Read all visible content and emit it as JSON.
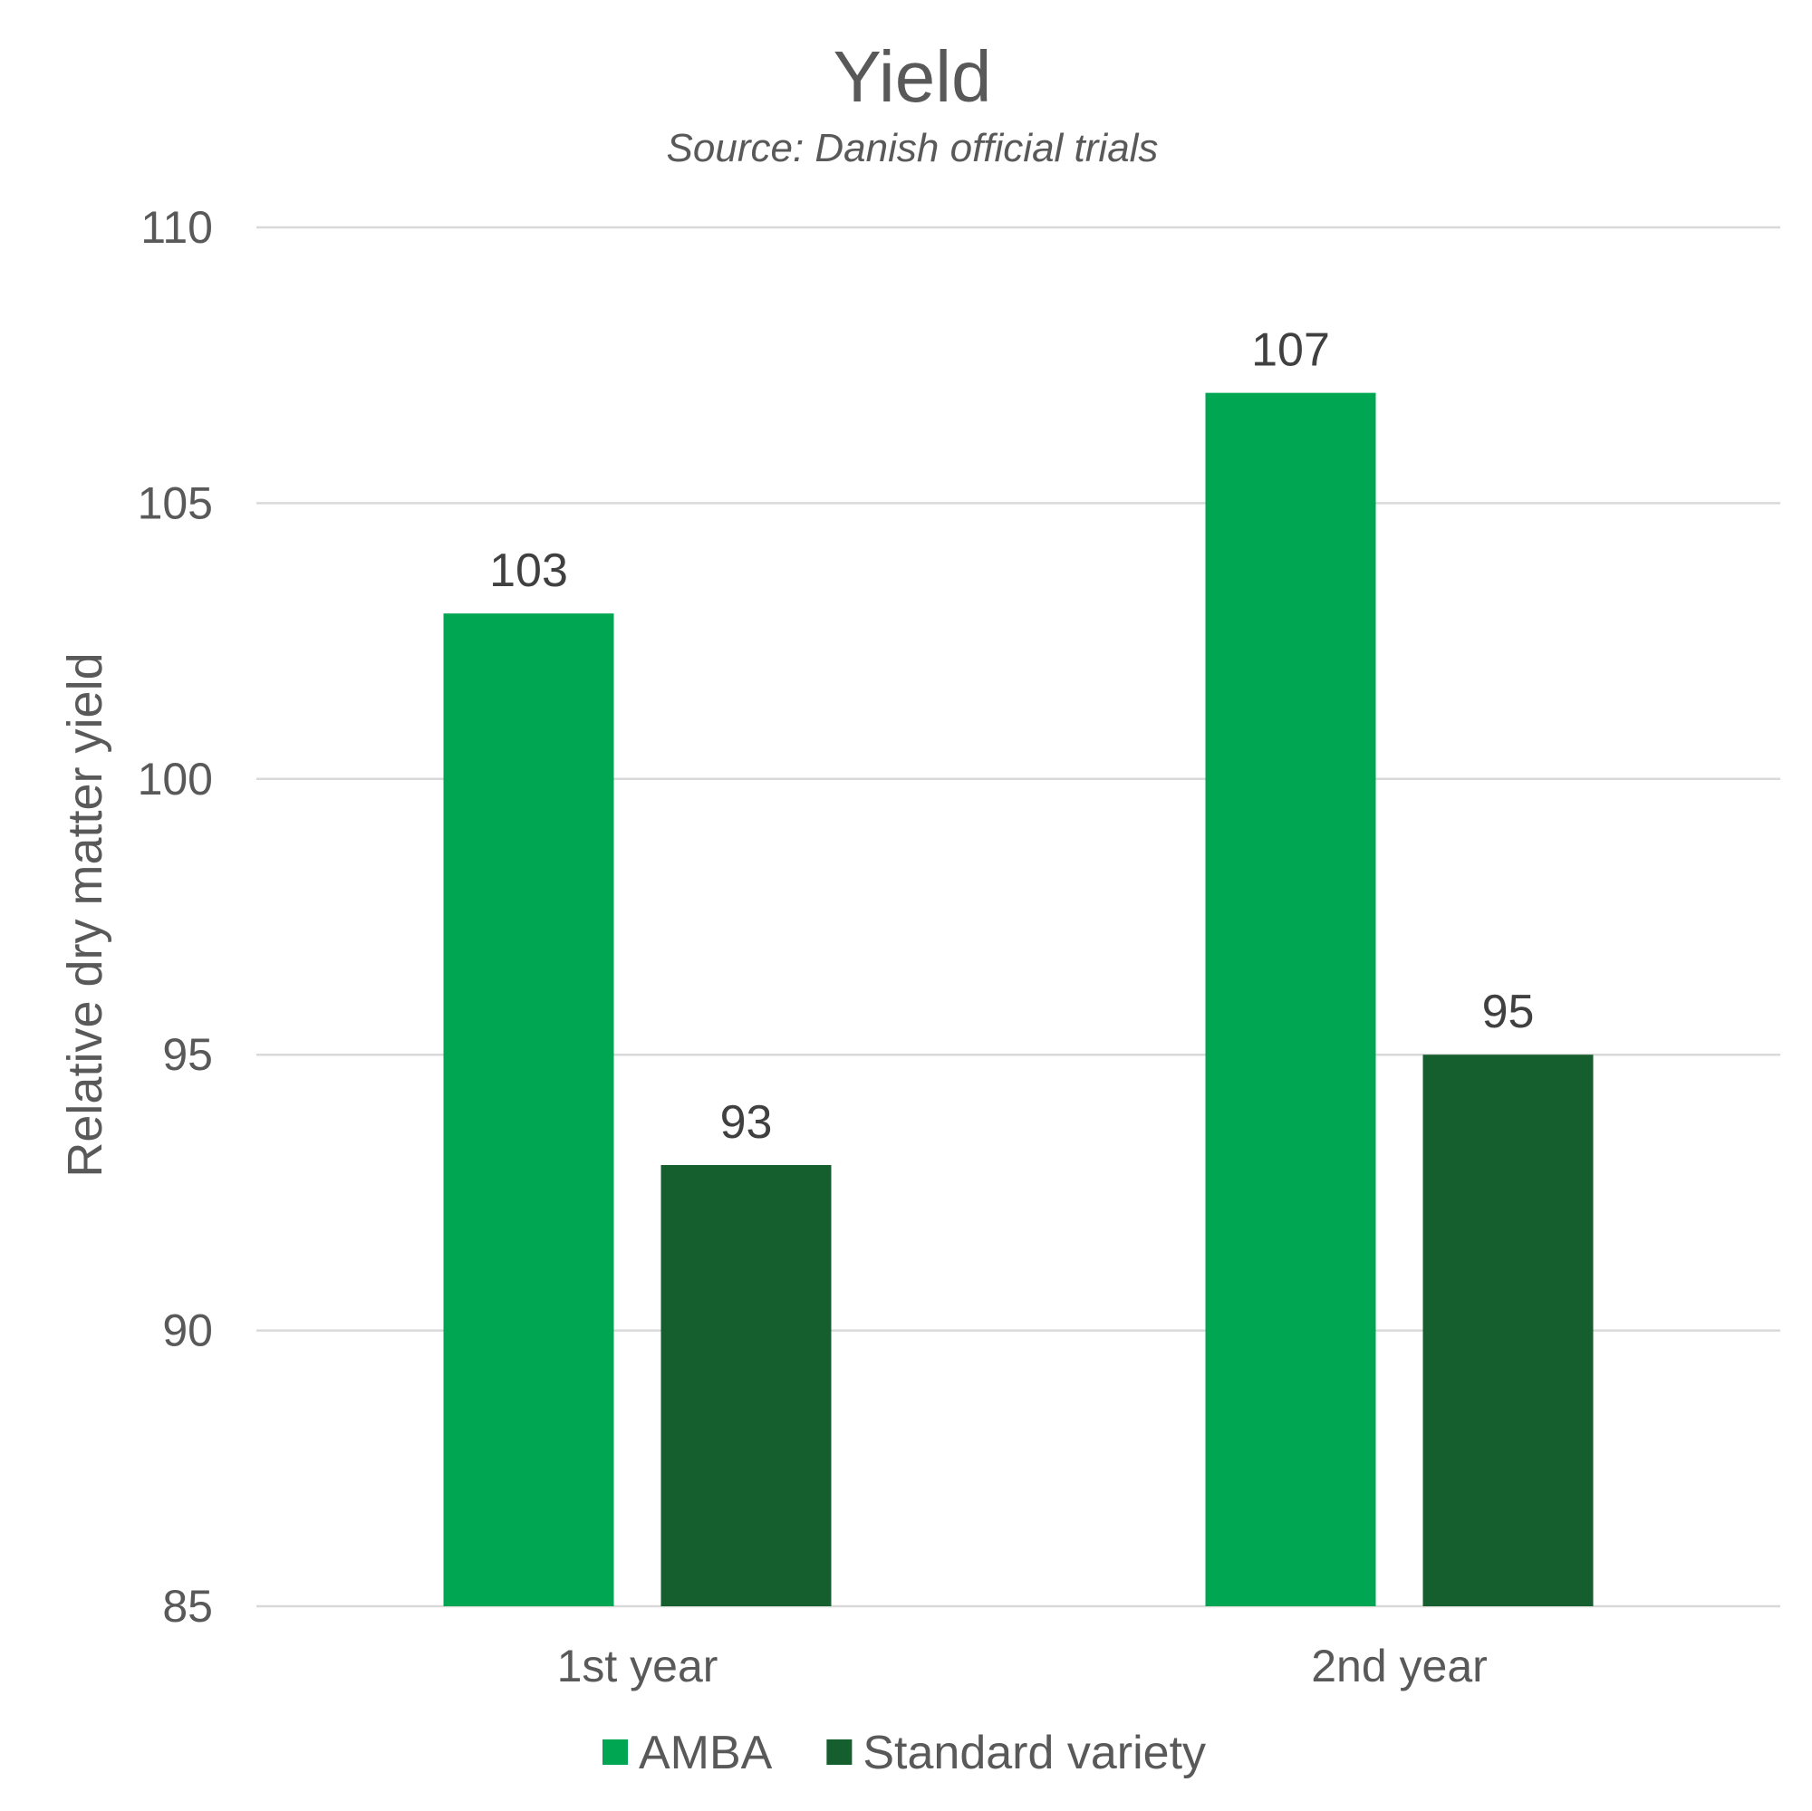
{
  "chart_data": {
    "type": "bar",
    "title": "Yield",
    "subtitle": "Source: Danish official trials",
    "xlabel": "",
    "ylabel": "Relative dry matter yield",
    "categories": [
      "1st year",
      "2nd year"
    ],
    "series": [
      {
        "name": "AMBA",
        "values": [
          103,
          107
        ],
        "color": "#00a651"
      },
      {
        "name": "Standard variety",
        "values": [
          93,
          95
        ],
        "color": "#155f2e"
      }
    ],
    "ylim": [
      85,
      110
    ],
    "yticks": [
      85,
      90,
      95,
      100,
      105,
      110
    ],
    "grid": true,
    "legend_position": "bottom"
  }
}
